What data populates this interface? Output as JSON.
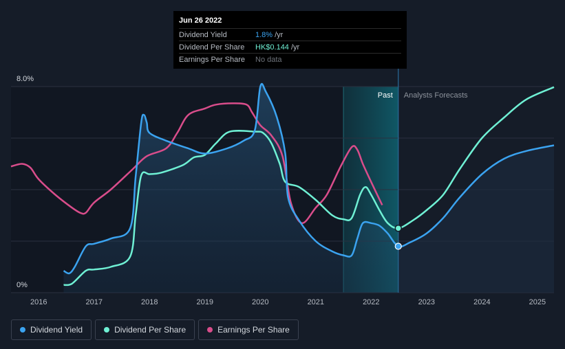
{
  "tooltip": {
    "date": "Jun 26 2022",
    "rows": [
      {
        "label": "Dividend Yield",
        "value": "1.8%",
        "unit": " /yr",
        "color": "#3ba3f0"
      },
      {
        "label": "Dividend Per Share",
        "value": "HK$0.144",
        "unit": " /yr",
        "color": "#6ff0d4"
      },
      {
        "label": "Earnings Per Share",
        "value": "No data",
        "unit": "",
        "color": "#6e737b"
      }
    ]
  },
  "legend": [
    {
      "label": "Dividend Yield",
      "color": "#3ba3f0"
    },
    {
      "label": "Dividend Per Share",
      "color": "#6ff0d4"
    },
    {
      "label": "Earnings Per Share",
      "color": "#d94d8b"
    }
  ],
  "chart_data": {
    "type": "line",
    "region_labels": {
      "past": "Past",
      "forecast": "Analysts Forecasts"
    },
    "y_tick_labels": [
      "8.0%",
      "0%"
    ],
    "ylim": [
      0,
      8
    ],
    "xlim": [
      2015.5,
      2025.3
    ],
    "x_ticks": [
      "2016",
      "2017",
      "2018",
      "2019",
      "2020",
      "2021",
      "2022",
      "2023",
      "2024",
      "2025"
    ],
    "past_start": 2021.5,
    "forecast_start": 2022.49,
    "grid": true,
    "colors": {
      "dividend_yield": "#3ba3f0",
      "dividend_per_share": "#6ff0d4",
      "earnings_per_share": "#d94d8b"
    },
    "series": [
      {
        "name": "Dividend Yield",
        "unit": "%",
        "points": [
          [
            2016.45,
            0.85
          ],
          [
            2016.55,
            0.75
          ],
          [
            2016.65,
            1.0
          ],
          [
            2016.85,
            1.8
          ],
          [
            2017.0,
            1.9
          ],
          [
            2017.3,
            2.1
          ],
          [
            2017.65,
            2.5
          ],
          [
            2017.75,
            4.5
          ],
          [
            2017.85,
            6.6
          ],
          [
            2017.9,
            6.9
          ],
          [
            2017.95,
            6.6
          ],
          [
            2018.0,
            6.2
          ],
          [
            2018.3,
            5.9
          ],
          [
            2018.7,
            5.6
          ],
          [
            2019.0,
            5.4
          ],
          [
            2019.4,
            5.6
          ],
          [
            2019.7,
            5.9
          ],
          [
            2019.9,
            6.3
          ],
          [
            2020.0,
            8.0
          ],
          [
            2020.1,
            7.8
          ],
          [
            2020.3,
            6.8
          ],
          [
            2020.45,
            5.4
          ],
          [
            2020.5,
            3.7
          ],
          [
            2020.7,
            2.8
          ],
          [
            2021.0,
            2.0
          ],
          [
            2021.3,
            1.6
          ],
          [
            2021.5,
            1.45
          ],
          [
            2021.65,
            1.45
          ],
          [
            2021.75,
            2.1
          ],
          [
            2021.85,
            2.7
          ],
          [
            2022.0,
            2.7
          ],
          [
            2022.15,
            2.6
          ],
          [
            2022.3,
            2.3
          ],
          [
            2022.49,
            1.8
          ],
          [
            2022.7,
            1.95
          ],
          [
            2023.0,
            2.3
          ],
          [
            2023.3,
            2.9
          ],
          [
            2023.6,
            3.7
          ],
          [
            2024.0,
            4.6
          ],
          [
            2024.4,
            5.2
          ],
          [
            2024.8,
            5.5
          ],
          [
            2025.3,
            5.72
          ]
        ]
      },
      {
        "name": "Dividend Per Share",
        "unit": "HK$",
        "points": [
          [
            2016.45,
            0.3
          ],
          [
            2016.6,
            0.35
          ],
          [
            2016.85,
            0.85
          ],
          [
            2017.0,
            0.9
          ],
          [
            2017.3,
            1.0
          ],
          [
            2017.65,
            1.4
          ],
          [
            2017.75,
            3.0
          ],
          [
            2017.85,
            4.55
          ],
          [
            2018.0,
            4.6
          ],
          [
            2018.2,
            4.65
          ],
          [
            2018.6,
            4.95
          ],
          [
            2018.8,
            5.25
          ],
          [
            2019.0,
            5.35
          ],
          [
            2019.2,
            5.8
          ],
          [
            2019.45,
            6.25
          ],
          [
            2019.9,
            6.25
          ],
          [
            2020.05,
            6.2
          ],
          [
            2020.2,
            5.8
          ],
          [
            2020.35,
            5.0
          ],
          [
            2020.45,
            4.3
          ],
          [
            2020.7,
            4.1
          ],
          [
            2021.0,
            3.6
          ],
          [
            2021.3,
            3.0
          ],
          [
            2021.5,
            2.85
          ],
          [
            2021.65,
            2.9
          ],
          [
            2021.8,
            3.8
          ],
          [
            2021.9,
            4.1
          ],
          [
            2022.0,
            3.8
          ],
          [
            2022.15,
            3.2
          ],
          [
            2022.3,
            2.7
          ],
          [
            2022.49,
            2.5
          ],
          [
            2022.75,
            2.8
          ],
          [
            2023.0,
            3.2
          ],
          [
            2023.3,
            3.8
          ],
          [
            2023.6,
            4.8
          ],
          [
            2024.0,
            6.0
          ],
          [
            2024.4,
            6.8
          ],
          [
            2024.8,
            7.5
          ],
          [
            2025.3,
            7.98
          ]
        ]
      },
      {
        "name": "Earnings Per Share",
        "unit": "HK$",
        "points": [
          [
            2015.5,
            4.9
          ],
          [
            2015.7,
            5.0
          ],
          [
            2015.85,
            4.85
          ],
          [
            2016.0,
            4.4
          ],
          [
            2016.3,
            3.8
          ],
          [
            2016.6,
            3.3
          ],
          [
            2016.75,
            3.1
          ],
          [
            2016.85,
            3.1
          ],
          [
            2017.0,
            3.5
          ],
          [
            2017.3,
            4.0
          ],
          [
            2017.7,
            4.8
          ],
          [
            2017.95,
            5.3
          ],
          [
            2018.3,
            5.6
          ],
          [
            2018.5,
            6.2
          ],
          [
            2018.7,
            6.9
          ],
          [
            2019.0,
            7.15
          ],
          [
            2019.2,
            7.3
          ],
          [
            2019.5,
            7.35
          ],
          [
            2019.75,
            7.3
          ],
          [
            2019.85,
            7.0
          ],
          [
            2020.0,
            6.5
          ],
          [
            2020.2,
            6.1
          ],
          [
            2020.4,
            5.3
          ],
          [
            2020.55,
            3.5
          ],
          [
            2020.75,
            2.7
          ],
          [
            2021.0,
            3.3
          ],
          [
            2021.2,
            3.8
          ],
          [
            2021.45,
            4.9
          ],
          [
            2021.65,
            5.65
          ],
          [
            2021.75,
            5.55
          ],
          [
            2021.85,
            5.0
          ],
          [
            2022.0,
            4.3
          ],
          [
            2022.2,
            3.4
          ]
        ]
      }
    ]
  }
}
